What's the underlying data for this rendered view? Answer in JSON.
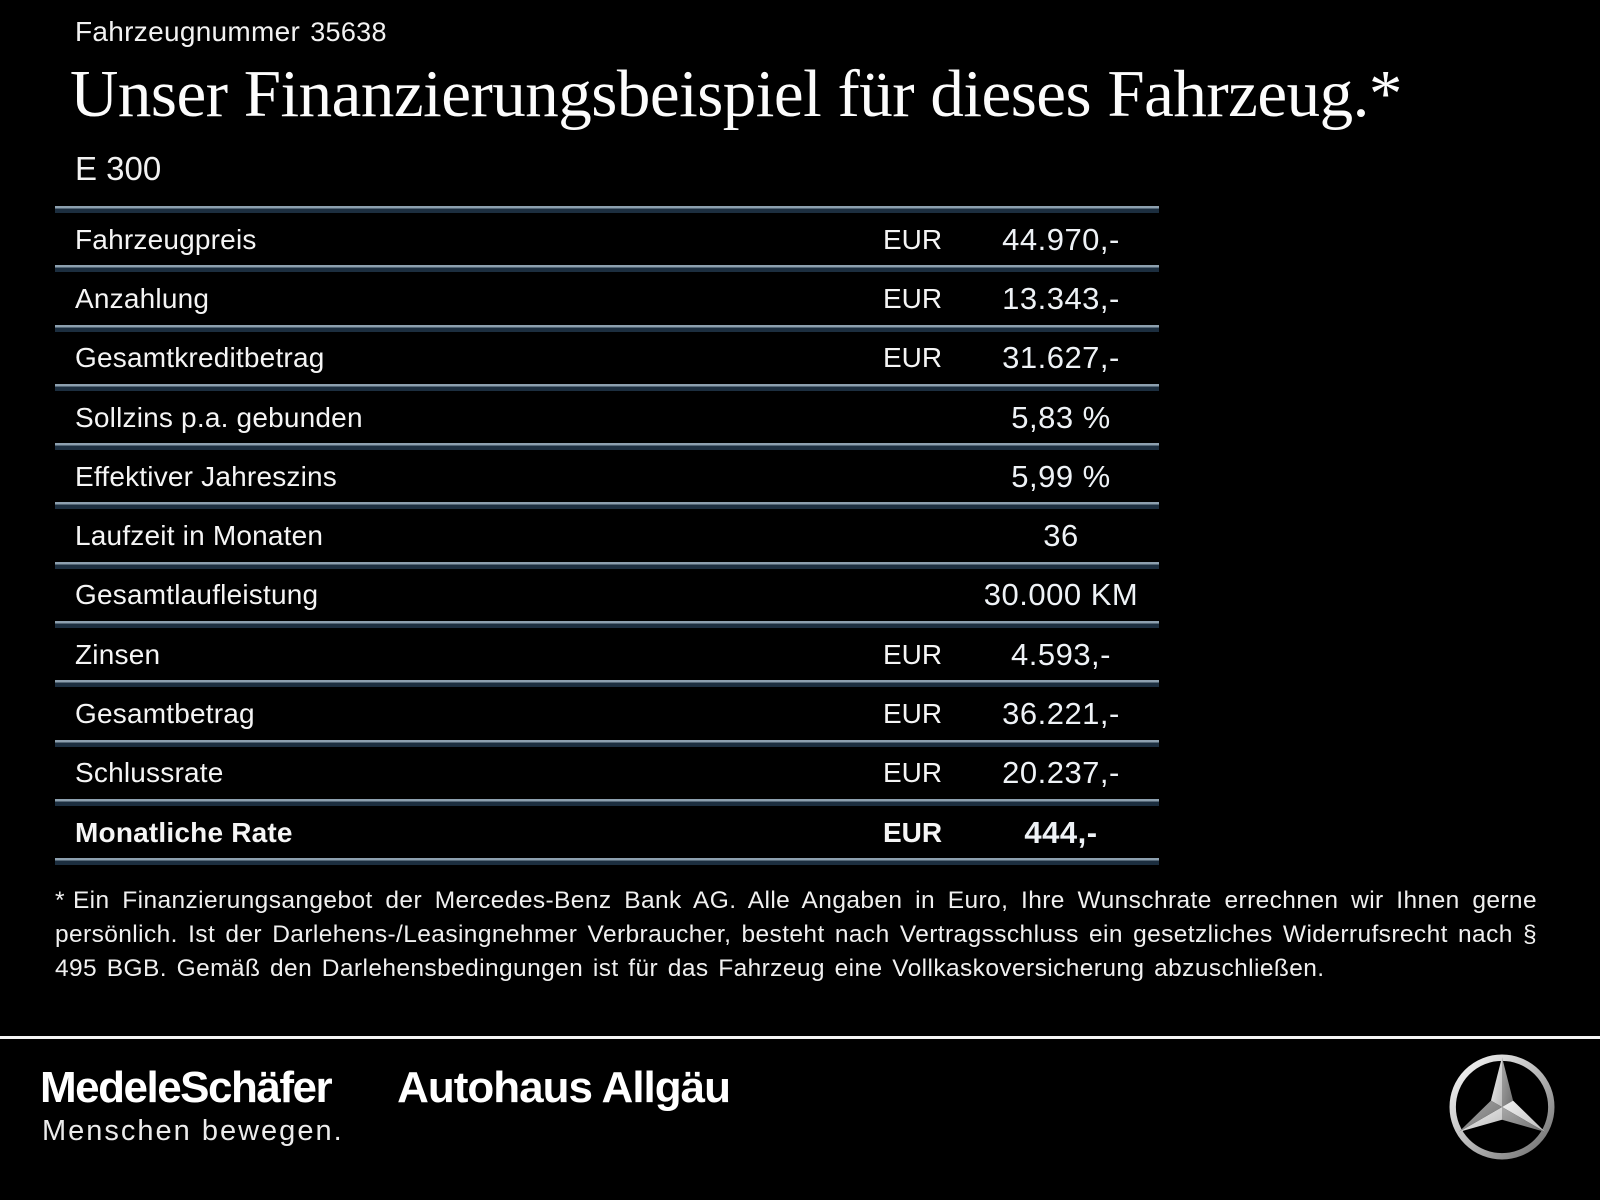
{
  "header": {
    "vehicle_number_label": "Fahrzeugnummer",
    "vehicle_number": "35638",
    "title": "Unser Finanzierungsbeispiel für dieses Fahrzeug.*",
    "model": "E 300"
  },
  "table": {
    "rows": [
      {
        "label": "Fahrzeugpreis",
        "currency": "EUR",
        "value": "44.970,-",
        "emphasis": false
      },
      {
        "label": "Anzahlung",
        "currency": "EUR",
        "value": "13.343,-",
        "emphasis": false
      },
      {
        "label": "Gesamtkreditbetrag",
        "currency": "EUR",
        "value": "31.627,-",
        "emphasis": false
      },
      {
        "label": "Sollzins p.a. gebunden",
        "currency": "",
        "value": "5,83 %",
        "emphasis": false
      },
      {
        "label": "Effektiver Jahreszins",
        "currency": "",
        "value": "5,99 %",
        "emphasis": false
      },
      {
        "label": "Laufzeit in Monaten",
        "currency": "",
        "value": "36",
        "emphasis": false
      },
      {
        "label": "Gesamtlaufleistung",
        "currency": "",
        "value": "30.000 KM",
        "emphasis": false
      },
      {
        "label": "Zinsen",
        "currency": "EUR",
        "value": "4.593,-",
        "emphasis": false
      },
      {
        "label": "Gesamtbetrag",
        "currency": "EUR",
        "value": "36.221,-",
        "emphasis": false
      },
      {
        "label": "Schlussrate",
        "currency": "EUR",
        "value": "20.237,-",
        "emphasis": false
      },
      {
        "label": "Monatliche Rate",
        "currency": "EUR",
        "value": "444,-",
        "emphasis": true
      }
    ]
  },
  "footnote": {
    "marker": "*",
    "text": "Ein Finanzierungsangebot der Mercedes-Benz Bank AG. Alle Angaben in Euro, Ihre Wunschrate errechnen wir Ihnen gerne persönlich. Ist der Darlehens-/Leasingnehmer Verbraucher, besteht nach Vertragsschluss ein gesetzliches Widerrufsrecht nach § 495 BGB. Gemäß den Darlehensbedingungen ist für das Fahrzeug eine Vollkaskoversicherung abzuschließen."
  },
  "footer": {
    "dealer_name": "MedeleSchäfer",
    "dealer_name_2": "Autohaus Allgäu",
    "tagline": "Menschen bewegen.",
    "brand_icon": "mercedes-star-icon"
  },
  "colors": {
    "background": "#000000",
    "text": "#f4f4f4",
    "divider_light": "#8da0af",
    "divider_dark": "#1c2e3f",
    "separator": "#f4f4f4"
  }
}
